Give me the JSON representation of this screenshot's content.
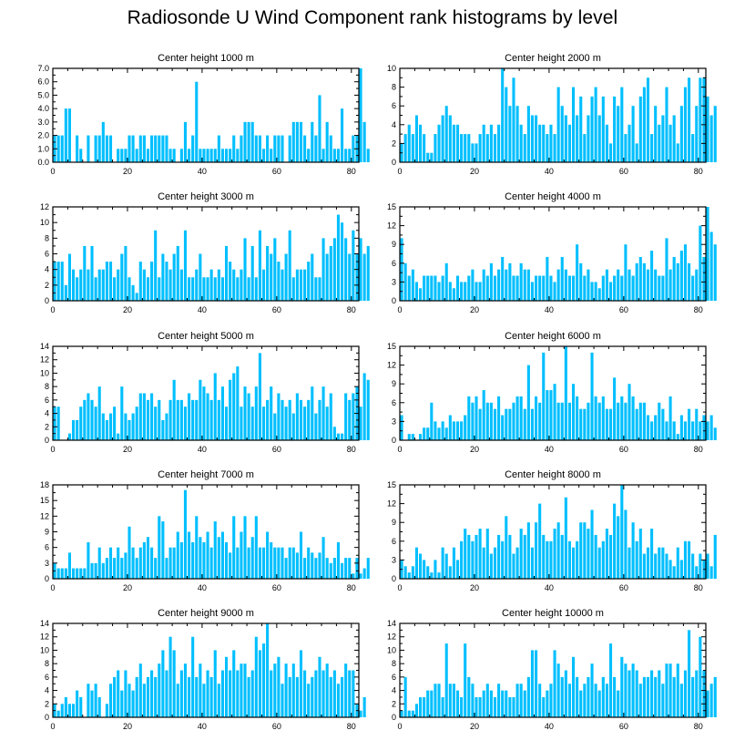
{
  "title": "Radiosonde U Wind Component rank histograms by level",
  "colors": {
    "bar": "#00bfff",
    "axis": "#000000",
    "background": "#ffffff"
  },
  "chart_data": [
    {
      "type": "bar",
      "title": "Center height 1000 m",
      "xlim": [
        0,
        82
      ],
      "ylim": [
        0,
        7
      ],
      "xticks": [
        0,
        20,
        40,
        60,
        80
      ],
      "yticks": [
        0,
        1,
        2,
        3,
        4,
        5,
        6,
        7
      ],
      "ytick_labels": [
        "0.0",
        "1.0",
        "2.0",
        "3.0",
        "4.0",
        "5.0",
        "6.0",
        "7.0"
      ],
      "values": [
        2,
        2,
        2,
        4,
        4,
        0,
        2,
        1,
        0,
        2,
        0,
        2,
        2,
        3,
        2,
        2,
        0,
        1,
        1,
        1,
        2,
        2,
        1,
        2,
        2,
        1,
        2,
        2,
        2,
        2,
        2,
        1,
        1,
        0,
        1,
        3,
        1,
        2,
        6,
        1,
        1,
        1,
        1,
        1,
        2,
        1,
        1,
        1,
        2,
        1,
        2,
        3,
        3,
        3,
        2,
        2,
        1,
        2,
        1,
        2,
        2,
        2,
        0,
        2,
        3,
        3,
        3,
        2,
        1,
        3,
        2,
        5,
        1,
        3,
        2,
        1,
        1,
        4,
        1,
        1,
        2,
        2,
        7,
        3,
        1
      ]
    },
    {
      "type": "bar",
      "title": "Center height 2000 m",
      "xlim": [
        0,
        82
      ],
      "ylim": [
        0,
        10
      ],
      "xticks": [
        0,
        20,
        40,
        60,
        80
      ],
      "yticks": [
        0,
        2,
        4,
        6,
        8,
        10
      ],
      "ytick_labels": [
        "0",
        "2",
        "4",
        "6",
        "8",
        "10"
      ],
      "values": [
        2,
        3,
        4,
        3,
        5,
        4,
        3,
        1,
        1,
        3,
        4,
        5,
        6,
        5,
        4,
        4,
        3,
        3,
        3,
        2,
        2,
        3,
        4,
        3,
        4,
        3,
        4,
        10,
        8,
        6,
        9,
        6,
        4,
        3,
        6,
        5,
        5,
        4,
        4,
        3,
        4,
        3,
        8,
        6,
        5,
        4,
        8,
        5,
        7,
        3,
        5,
        7,
        8,
        5,
        7,
        4,
        2,
        7,
        6,
        8,
        3,
        4,
        6,
        2,
        7,
        8,
        9,
        3,
        6,
        4,
        5,
        8,
        4,
        5,
        2,
        6,
        8,
        9,
        3,
        6,
        9,
        9,
        7,
        5,
        6
      ]
    },
    {
      "type": "bar",
      "title": "Center height 3000 m",
      "xlim": [
        0,
        82
      ],
      "ylim": [
        0,
        12
      ],
      "xticks": [
        0,
        20,
        40,
        60,
        80
      ],
      "yticks": [
        0,
        2,
        4,
        6,
        8,
        10,
        12
      ],
      "ytick_labels": [
        "0",
        "2",
        "4",
        "6",
        "8",
        "10",
        "12"
      ],
      "values": [
        5,
        5,
        5,
        2,
        6,
        4,
        3,
        4,
        7,
        4,
        7,
        3,
        4,
        4,
        5,
        5,
        3,
        4,
        6,
        7,
        3,
        2,
        1,
        5,
        4,
        3,
        5,
        9,
        3,
        6,
        5,
        4,
        6,
        7,
        4,
        9,
        3,
        3,
        4,
        6,
        3,
        3,
        4,
        3,
        4,
        3,
        7,
        5,
        4,
        3,
        4,
        8,
        3,
        7,
        3,
        9,
        4,
        7,
        6,
        8,
        5,
        4,
        6,
        9,
        3,
        4,
        4,
        4,
        5,
        6,
        3,
        3,
        8,
        6,
        7,
        8,
        11,
        10,
        8,
        6,
        9,
        6,
        8,
        6,
        7
      ]
    },
    {
      "type": "bar",
      "title": "Center height 4000 m",
      "xlim": [
        0,
        82
      ],
      "ylim": [
        0,
        15
      ],
      "xticks": [
        0,
        20,
        40,
        60,
        80
      ],
      "yticks": [
        0,
        3,
        6,
        9,
        12,
        15
      ],
      "ytick_labels": [
        "0",
        "3",
        "6",
        "9",
        "12",
        "15"
      ],
      "values": [
        10,
        6,
        4,
        5,
        3,
        2,
        4,
        4,
        4,
        4,
        3,
        4,
        6,
        3,
        2,
        4,
        3,
        3,
        4,
        5,
        3,
        3,
        5,
        4,
        6,
        4,
        5,
        7,
        5,
        6,
        4,
        4,
        6,
        5,
        5,
        3,
        4,
        4,
        4,
        7,
        4,
        3,
        5,
        7,
        5,
        4,
        4,
        9,
        6,
        4,
        5,
        3,
        3,
        2,
        4,
        5,
        3,
        4,
        5,
        4,
        9,
        5,
        4,
        6,
        7,
        6,
        5,
        8,
        5,
        4,
        4,
        10,
        5,
        7,
        6,
        8,
        9,
        6,
        4,
        5,
        12,
        7,
        15,
        11,
        9
      ]
    },
    {
      "type": "bar",
      "title": "Center height 5000 m",
      "xlim": [
        0,
        82
      ],
      "ylim": [
        0,
        14
      ],
      "xticks": [
        0,
        20,
        40,
        60,
        80
      ],
      "yticks": [
        0,
        2,
        4,
        6,
        8,
        10,
        12,
        14
      ],
      "ytick_labels": [
        "0",
        "2",
        "4",
        "6",
        "8",
        "10",
        "12",
        "14"
      ],
      "values": [
        5,
        5,
        0,
        0,
        1,
        3,
        3,
        5,
        6,
        7,
        6,
        5,
        8,
        4,
        3,
        4,
        5,
        1,
        8,
        4,
        3,
        4,
        5,
        7,
        7,
        6,
        7,
        5,
        6,
        3,
        4,
        6,
        9,
        6,
        6,
        5,
        7,
        6,
        6,
        9,
        8,
        7,
        6,
        10,
        6,
        8,
        5,
        9,
        10,
        11,
        5,
        8,
        7,
        5,
        8,
        13,
        5,
        6,
        8,
        4,
        7,
        6,
        5,
        6,
        4,
        7,
        6,
        5,
        6,
        8,
        4,
        6,
        8,
        5,
        7,
        2,
        1,
        1,
        7,
        6,
        7,
        8,
        5,
        10,
        9
      ]
    },
    {
      "type": "bar",
      "title": "Center height 6000 m",
      "xlim": [
        0,
        82
      ],
      "ylim": [
        0,
        15
      ],
      "xticks": [
        0,
        20,
        40,
        60,
        80
      ],
      "yticks": [
        0,
        3,
        6,
        9,
        12,
        15
      ],
      "ytick_labels": [
        "0",
        "3",
        "6",
        "9",
        "12",
        "15"
      ],
      "values": [
        4,
        0,
        1,
        1,
        0,
        1,
        2,
        2,
        6,
        3,
        2,
        3,
        2,
        4,
        3,
        3,
        3,
        4,
        7,
        6,
        7,
        5,
        8,
        6,
        6,
        5,
        7,
        4,
        5,
        5,
        6,
        7,
        7,
        5,
        12,
        5,
        7,
        6,
        14,
        8,
        8,
        9,
        6,
        6,
        15,
        6,
        9,
        7,
        5,
        5,
        6,
        14,
        7,
        6,
        7,
        5,
        5,
        10,
        6,
        7,
        6,
        9,
        7,
        5,
        6,
        6,
        4,
        3,
        4,
        6,
        5,
        3,
        7,
        3,
        1,
        4,
        3,
        5,
        3,
        5,
        3,
        4,
        3,
        4,
        2
      ]
    },
    {
      "type": "bar",
      "title": "Center height 7000 m",
      "xlim": [
        0,
        82
      ],
      "ylim": [
        0,
        18
      ],
      "xticks": [
        0,
        20,
        40,
        60,
        80
      ],
      "yticks": [
        0,
        3,
        6,
        9,
        12,
        15,
        18
      ],
      "ytick_labels": [
        "0",
        "3",
        "6",
        "9",
        "12",
        "15",
        "18"
      ],
      "values": [
        3,
        2,
        2,
        2,
        5,
        2,
        2,
        2,
        2,
        7,
        3,
        3,
        6,
        3,
        4,
        6,
        4,
        6,
        4,
        5,
        10,
        6,
        4,
        6,
        7,
        8,
        6,
        4,
        12,
        11,
        4,
        6,
        6,
        9,
        7,
        17,
        9,
        7,
        12,
        8,
        7,
        9,
        6,
        11,
        8,
        9,
        7,
        5,
        12,
        6,
        9,
        12,
        6,
        8,
        12,
        6,
        6,
        9,
        7,
        6,
        6,
        6,
        4,
        6,
        6,
        5,
        9,
        4,
        6,
        5,
        4,
        5,
        8,
        4,
        3,
        4,
        7,
        3,
        4,
        4,
        1,
        4,
        1,
        2,
        4
      ]
    },
    {
      "type": "bar",
      "title": "Center height 8000 m",
      "xlim": [
        0,
        82
      ],
      "ylim": [
        0,
        15
      ],
      "xticks": [
        0,
        20,
        40,
        60,
        80
      ],
      "yticks": [
        0,
        3,
        6,
        9,
        12,
        15
      ],
      "ytick_labels": [
        "0",
        "3",
        "6",
        "9",
        "12",
        "15"
      ],
      "values": [
        3,
        2,
        1,
        2,
        5,
        4,
        3,
        2,
        1,
        3,
        1,
        5,
        4,
        2,
        5,
        3,
        6,
        8,
        7,
        6,
        7,
        8,
        5,
        8,
        4,
        5,
        7,
        6,
        10,
        7,
        4,
        5,
        8,
        7,
        9,
        5,
        9,
        12,
        7,
        6,
        6,
        8,
        9,
        7,
        13,
        6,
        5,
        6,
        9,
        9,
        8,
        11,
        7,
        5,
        6,
        8,
        7,
        12,
        10,
        15,
        11,
        5,
        9,
        6,
        8,
        4,
        5,
        8,
        4,
        5,
        5,
        4,
        3,
        2,
        5,
        3,
        6,
        6,
        4,
        2,
        4,
        3,
        4,
        2,
        7
      ]
    },
    {
      "type": "bar",
      "title": "Center height 9000 m",
      "xlim": [
        0,
        82
      ],
      "ylim": [
        0,
        14
      ],
      "xticks": [
        0,
        20,
        40,
        60,
        80
      ],
      "yticks": [
        0,
        2,
        4,
        6,
        8,
        10,
        12,
        14
      ],
      "ytick_labels": [
        "0",
        "2",
        "4",
        "6",
        "8",
        "10",
        "12",
        "14"
      ],
      "values": [
        2,
        1,
        2,
        3,
        2,
        2,
        4,
        3,
        0,
        5,
        4,
        5,
        3,
        0,
        2,
        5,
        6,
        7,
        4,
        7,
        5,
        4,
        6,
        8,
        5,
        6,
        7,
        6,
        8,
        10,
        7,
        12,
        10,
        5,
        7,
        8,
        6,
        12,
        6,
        8,
        5,
        7,
        6,
        10,
        5,
        7,
        9,
        7,
        10,
        7,
        8,
        8,
        6,
        7,
        12,
        10,
        11,
        14,
        7,
        8,
        9,
        5,
        8,
        6,
        8,
        6,
        10,
        7,
        5,
        6,
        7,
        9,
        7,
        8,
        6,
        7,
        5,
        6,
        8,
        7,
        7,
        2,
        1,
        3
      ]
    },
    {
      "type": "bar",
      "title": "Center height 10000 m",
      "xlim": [
        0,
        82
      ],
      "ylim": [
        0,
        14
      ],
      "xticks": [
        0,
        20,
        40,
        60,
        80
      ],
      "yticks": [
        0,
        2,
        4,
        6,
        8,
        10,
        12,
        14
      ],
      "ytick_labels": [
        "0",
        "2",
        "4",
        "6",
        "8",
        "10",
        "12",
        "14"
      ],
      "values": [
        1,
        6,
        1,
        1,
        2,
        3,
        3,
        4,
        4,
        5,
        5,
        3,
        11,
        5,
        5,
        4,
        3,
        11,
        6,
        5,
        3,
        3,
        4,
        5,
        4,
        3,
        5,
        4,
        4,
        3,
        3,
        5,
        5,
        4,
        6,
        10,
        10,
        5,
        3,
        4,
        5,
        10,
        8,
        6,
        7,
        5,
        9,
        6,
        4,
        5,
        6,
        8,
        5,
        4,
        6,
        5,
        11,
        6,
        4,
        9,
        8,
        7,
        8,
        7,
        5,
        6,
        6,
        7,
        6,
        7,
        5,
        8,
        8,
        6,
        8,
        5,
        7,
        13,
        6,
        7,
        12,
        7,
        4,
        5,
        6
      ]
    }
  ]
}
